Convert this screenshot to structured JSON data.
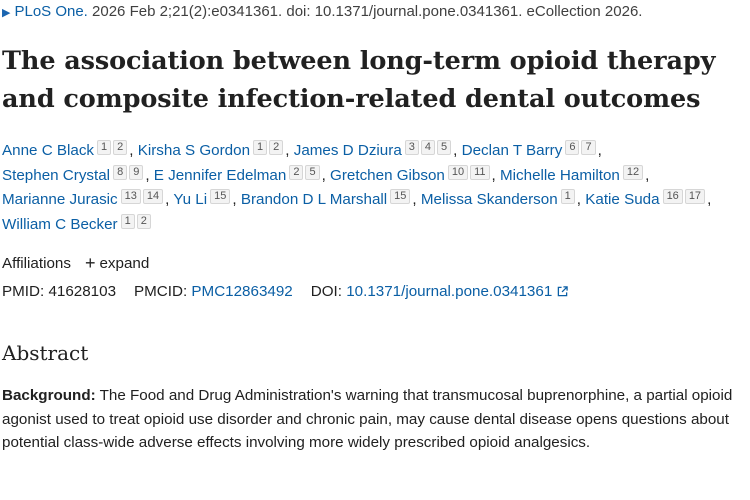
{
  "citation": {
    "journal": "PLoS One.",
    "details": "2026 Feb 2;21(2):e0341361. doi: 10.1371/journal.pone.0341361. eCollection 2026."
  },
  "article": {
    "title": "The association between long-term opioid therapy and composite infection-related dental outcomes"
  },
  "authors": [
    {
      "name": "Anne C Black",
      "affiliations": [
        "1",
        "2"
      ]
    },
    {
      "name": "Kirsha S Gordon",
      "affiliations": [
        "1",
        "2"
      ]
    },
    {
      "name": "James D Dziura",
      "affiliations": [
        "3",
        "4",
        "5"
      ]
    },
    {
      "name": "Declan T Barry",
      "affiliations": [
        "6",
        "7"
      ]
    },
    {
      "name": "Stephen Crystal",
      "affiliations": [
        "8",
        "9"
      ]
    },
    {
      "name": "E Jennifer Edelman",
      "affiliations": [
        "2",
        "5"
      ]
    },
    {
      "name": "Gretchen Gibson",
      "affiliations": [
        "10",
        "11"
      ]
    },
    {
      "name": "Michelle Hamilton",
      "affiliations": [
        "12"
      ]
    },
    {
      "name": "Marianne Jurasic",
      "affiliations": [
        "13",
        "14"
      ]
    },
    {
      "name": "Yu Li",
      "affiliations": [
        "15"
      ]
    },
    {
      "name": "Brandon D L Marshall",
      "affiliations": [
        "15"
      ]
    },
    {
      "name": "Melissa Skanderson",
      "affiliations": [
        "1"
      ]
    },
    {
      "name": "Katie Suda",
      "affiliations": [
        "16",
        "17"
      ]
    },
    {
      "name": "William C Becker",
      "affiliations": [
        "1",
        "2"
      ]
    }
  ],
  "affiliations_toggle": {
    "label": "Affiliations",
    "action": "expand"
  },
  "identifiers": {
    "pmid_label": "PMID:",
    "pmid": "41628103",
    "pmcid_label": "PMCID:",
    "pmcid": "PMC12863492",
    "doi_label": "DOI:",
    "doi": "10.1371/journal.pone.0341361"
  },
  "abstract": {
    "heading": "Abstract",
    "background_label": "Background:",
    "background_text": "The Food and Drug Administration's warning that transmucosal buprenorphine, a partial opioid agonist used to treat opioid use disorder and chronic pain, may cause dental disease opens questions about potential class-wide adverse effects involving more widely prescribed opioid analgesics."
  }
}
